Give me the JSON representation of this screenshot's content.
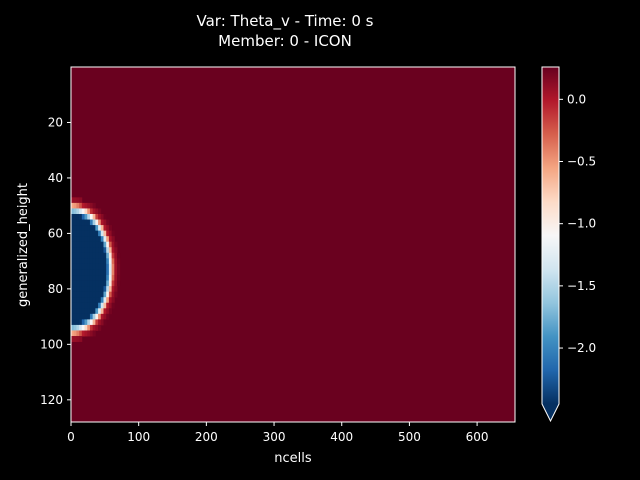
{
  "chart_data": {
    "type": "heatmap",
    "title_line1": "Var: Theta_v - Time: 0 s",
    "title_line2": "Member: 0 - ICON",
    "xlabel": "ncells",
    "ylabel": "generalized_height",
    "xlim": [
      0,
      656
    ],
    "ylim": [
      128,
      0
    ],
    "y_inverted": true,
    "x_ticks": [
      "0",
      "100",
      "200",
      "300",
      "400",
      "500",
      "600"
    ],
    "y_ticks": [
      "20",
      "40",
      "60",
      "80",
      "100",
      "120"
    ],
    "x_tick_values": [
      0,
      100,
      200,
      300,
      400,
      500,
      600
    ],
    "y_tick_values": [
      20,
      40,
      60,
      80,
      100,
      120
    ],
    "colormap": "RdBu_r",
    "background_value": 0.25,
    "anomaly": {
      "description_type": "cold bubble",
      "center_height": 73,
      "half_height": 24,
      "max_cell": 64,
      "min_value": -2.45
    },
    "colorbar": {
      "min": -2.45,
      "max": 0.26,
      "ticks": [
        "0.0",
        "−0.5",
        "−1.0",
        "−1.5",
        "−2.0"
      ],
      "tick_values": [
        0.0,
        -0.5,
        -1.0,
        -1.5,
        -2.0
      ],
      "extend": "min"
    }
  },
  "colors": {
    "background": "#000000",
    "foreground": "#ffffff",
    "cmap": [
      "#053061",
      "#2166ac",
      "#4393c3",
      "#92c5de",
      "#d1e5f0",
      "#f7f7f7",
      "#fddbc7",
      "#f4a582",
      "#d6604d",
      "#b2182b",
      "#67001f"
    ]
  }
}
